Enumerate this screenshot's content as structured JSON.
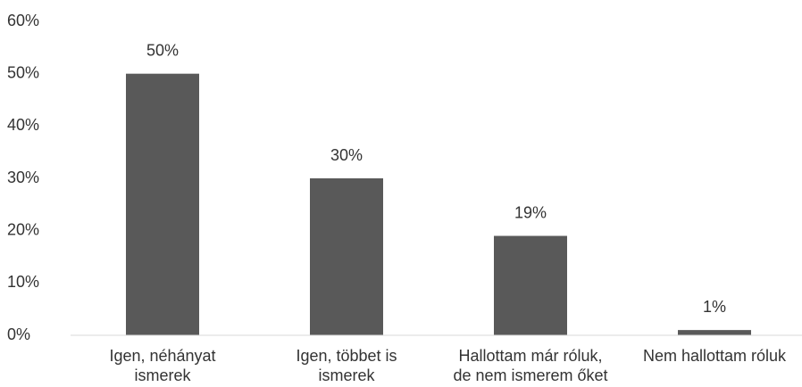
{
  "chart_data": {
    "type": "bar",
    "categories": [
      "Igen, néhányat\nismerek",
      "Igen, többet is\nismerek",
      "Hallottam már róluk,\nde nem ismerem őket",
      "Nem hallottam róluk"
    ],
    "values": [
      50,
      30,
      19,
      1
    ],
    "value_labels": [
      "50%",
      "30%",
      "19%",
      "1%"
    ],
    "color": "#595959",
    "ylim": [
      0,
      60
    ],
    "yticks": [
      {
        "value": 0,
        "label": "0%"
      },
      {
        "value": 10,
        "label": "10%"
      },
      {
        "value": 20,
        "label": "20%"
      },
      {
        "value": 30,
        "label": "30%"
      },
      {
        "value": 40,
        "label": "40%"
      },
      {
        "value": 50,
        "label": "50%"
      },
      {
        "value": 60,
        "label": "60%"
      }
    ]
  }
}
